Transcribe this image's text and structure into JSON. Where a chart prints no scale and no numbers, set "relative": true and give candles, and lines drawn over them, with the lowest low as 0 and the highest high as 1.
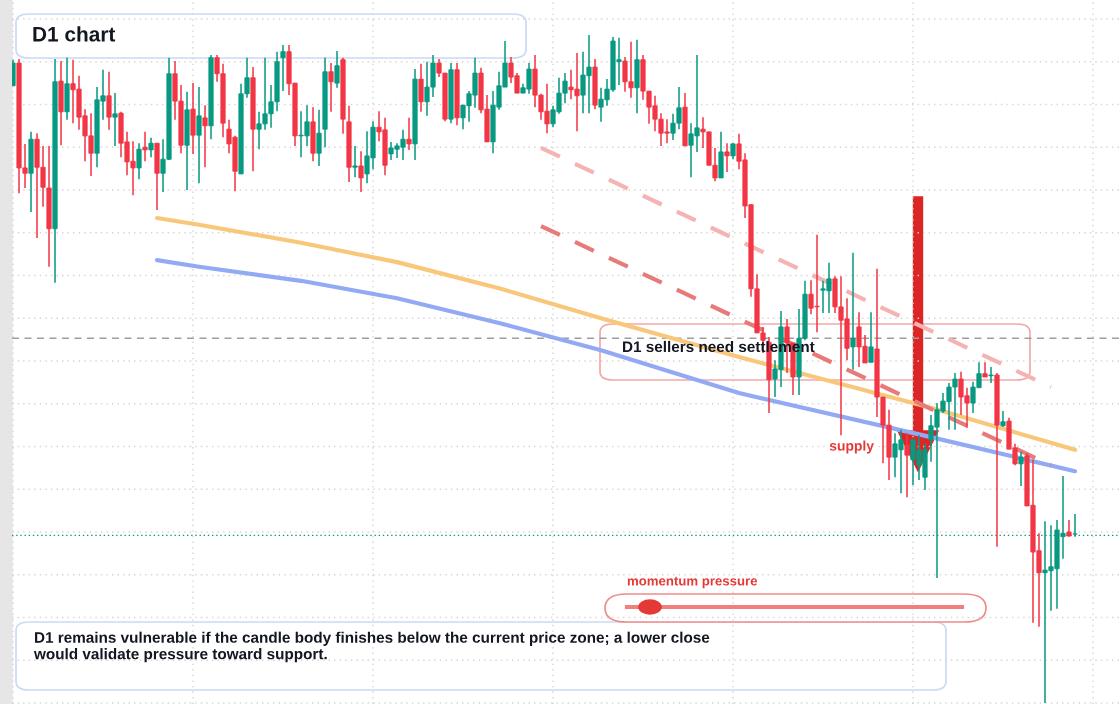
{
  "chart_data": {
    "type": "candlestick",
    "title": "D1 chart",
    "relative": true,
    "grid": true,
    "categories": [
      null,
      null,
      null,
      null,
      null,
      null,
      null,
      null,
      null,
      null,
      null,
      null,
      null,
      null,
      null,
      null,
      null,
      null,
      null,
      null,
      null,
      null,
      null,
      null,
      null,
      null,
      null,
      null,
      null,
      null,
      null,
      null,
      null,
      null,
      null,
      null,
      null,
      null,
      null,
      null,
      null,
      null,
      null,
      null,
      null,
      null,
      null,
      null,
      null,
      null,
      null,
      null,
      null,
      null,
      null,
      null,
      null,
      null,
      null,
      null,
      null,
      null,
      null,
      null,
      null,
      null,
      null,
      null,
      null,
      null,
      null,
      null,
      null,
      null,
      null,
      null,
      null,
      null,
      null,
      null,
      null,
      null,
      null,
      null,
      null,
      null,
      null,
      null,
      null,
      null,
      null,
      null,
      null,
      null,
      null,
      null,
      null,
      null,
      null,
      null,
      null,
      null,
      null,
      null,
      null,
      null,
      null,
      null,
      null,
      null,
      null,
      null,
      null,
      null,
      null,
      null,
      null,
      null,
      null,
      null,
      null,
      null,
      null,
      null,
      null,
      null,
      null,
      null,
      null,
      null,
      null,
      null,
      null,
      null,
      null,
      null,
      null,
      null,
      null,
      null,
      null,
      null,
      null,
      null,
      null,
      null,
      null,
      null,
      null,
      null,
      null,
      null,
      null,
      null,
      null,
      null,
      null,
      null,
      null,
      null,
      null,
      null,
      null,
      null,
      null,
      null,
      null,
      null,
      null,
      null,
      null,
      null,
      null,
      null,
      null,
      null,
      null,
      null
    ],
    "ohlc": [
      [
        0.924,
        0.963,
        0.924,
        0.958
      ],
      [
        0.958,
        0.964,
        0.763,
        0.801
      ],
      [
        0.801,
        0.837,
        0.771,
        0.793
      ],
      [
        0.793,
        0.855,
        0.735,
        0.844
      ],
      [
        0.844,
        0.853,
        0.696,
        0.802
      ],
      [
        0.802,
        0.834,
        0.743,
        0.772
      ],
      [
        0.771,
        0.834,
        0.653,
        0.71
      ],
      [
        0.71,
        0.964,
        0.629,
        0.93
      ],
      [
        0.931,
        0.961,
        0.835,
        0.885
      ],
      [
        0.885,
        0.966,
        0.873,
        0.927
      ],
      [
        0.927,
        0.963,
        0.868,
        0.918
      ],
      [
        0.919,
        0.939,
        0.858,
        0.877
      ],
      [
        0.879,
        0.889,
        0.811,
        0.849
      ],
      [
        0.849,
        0.883,
        0.789,
        0.823
      ],
      [
        0.823,
        0.922,
        0.802,
        0.903
      ],
      [
        0.901,
        0.948,
        0.873,
        0.909
      ],
      [
        0.909,
        0.945,
        0.858,
        0.877
      ],
      [
        0.877,
        0.913,
        0.834,
        0.882
      ],
      [
        0.883,
        0.885,
        0.817,
        0.838
      ],
      [
        0.84,
        0.855,
        0.79,
        0.81
      ],
      [
        0.811,
        0.841,
        0.76,
        0.801
      ],
      [
        0.801,
        0.838,
        0.784,
        0.829
      ],
      [
        0.832,
        0.855,
        0.811,
        0.828
      ],
      [
        0.828,
        0.846,
        0.817,
        0.838
      ],
      [
        0.838,
        0.838,
        0.738,
        0.793
      ],
      [
        0.793,
        0.844,
        0.765,
        0.814
      ],
      [
        0.814,
        0.966,
        0.813,
        0.942
      ],
      [
        0.942,
        0.961,
        0.873,
        0.901
      ],
      [
        0.901,
        0.925,
        0.823,
        0.835
      ],
      [
        0.835,
        0.915,
        0.768,
        0.888
      ],
      [
        0.889,
        0.928,
        0.822,
        0.85
      ],
      [
        0.85,
        0.922,
        0.778,
        0.879
      ],
      [
        0.876,
        0.895,
        0.802,
        0.864
      ],
      [
        0.864,
        0.97,
        0.844,
        0.966
      ],
      [
        0.966,
        0.97,
        0.93,
        0.942
      ],
      [
        0.942,
        0.957,
        0.847,
        0.868
      ],
      [
        0.859,
        0.873,
        0.823,
        0.837
      ],
      [
        0.847,
        0.849,
        0.766,
        0.796
      ],
      [
        0.792,
        0.927,
        0.792,
        0.912
      ],
      [
        0.912,
        0.966,
        0.906,
        0.936
      ],
      [
        0.936,
        0.952,
        0.796,
        0.859
      ],
      [
        0.859,
        0.885,
        0.829,
        0.867
      ],
      [
        0.867,
        0.966,
        0.858,
        0.882
      ],
      [
        0.882,
        0.925,
        0.861,
        0.9
      ],
      [
        0.9,
        0.975,
        0.886,
        0.96
      ],
      [
        0.966,
        0.985,
        0.916,
        0.975
      ],
      [
        0.975,
        0.985,
        0.91,
        0.927
      ],
      [
        0.928,
        0.928,
        0.834,
        0.849
      ],
      [
        0.849,
        0.886,
        0.817,
        0.85
      ],
      [
        0.849,
        0.895,
        0.834,
        0.87
      ],
      [
        0.87,
        0.892,
        0.811,
        0.823
      ],
      [
        0.823,
        0.888,
        0.804,
        0.853
      ],
      [
        0.859,
        0.966,
        0.832,
        0.945
      ],
      [
        0.945,
        0.958,
        0.885,
        0.93
      ],
      [
        0.928,
        0.976,
        0.921,
        0.954
      ],
      [
        0.963,
        0.966,
        0.852,
        0.874
      ],
      [
        0.87,
        0.894,
        0.78,
        0.802
      ],
      [
        0.802,
        0.834,
        0.787,
        0.804
      ],
      [
        0.804,
        0.826,
        0.765,
        0.786
      ],
      [
        0.792,
        0.856,
        0.778,
        0.819
      ],
      [
        0.816,
        0.871,
        0.799,
        0.862
      ],
      [
        0.862,
        0.886,
        0.841,
        0.855
      ],
      [
        0.858,
        0.876,
        0.79,
        0.805
      ],
      [
        0.822,
        0.84,
        0.813,
        0.831
      ],
      [
        0.829,
        0.838,
        0.816,
        0.834
      ],
      [
        0.832,
        0.858,
        0.813,
        0.844
      ],
      [
        0.844,
        0.876,
        0.828,
        0.837
      ],
      [
        0.837,
        0.949,
        0.813,
        0.934
      ],
      [
        0.934,
        0.957,
        0.885,
        0.9
      ],
      [
        0.9,
        0.96,
        0.879,
        0.922
      ],
      [
        0.922,
        0.97,
        0.907,
        0.958
      ],
      [
        0.958,
        0.964,
        0.937,
        0.943
      ],
      [
        0.943,
        0.943,
        0.871,
        0.874
      ],
      [
        0.874,
        0.958,
        0.868,
        0.948
      ],
      [
        0.948,
        0.958,
        0.865,
        0.876
      ],
      [
        0.876,
        0.895,
        0.859,
        0.895
      ],
      [
        0.894,
        0.916,
        0.87,
        0.912
      ],
      [
        0.91,
        0.966,
        0.891,
        0.943
      ],
      [
        0.943,
        0.951,
        0.883,
        0.888
      ],
      [
        0.889,
        0.91,
        0.84,
        0.84
      ],
      [
        0.84,
        0.916,
        0.823,
        0.895
      ],
      [
        0.892,
        0.945,
        0.888,
        0.924
      ],
      [
        0.922,
        0.991,
        0.922,
        0.958
      ],
      [
        0.958,
        0.967,
        0.928,
        0.937
      ],
      [
        0.939,
        0.943,
        0.913,
        0.913
      ],
      [
        0.913,
        0.927,
        0.913,
        0.921
      ],
      [
        0.919,
        0.958,
        0.912,
        0.949
      ],
      [
        0.949,
        0.97,
        0.892,
        0.91
      ],
      [
        0.91,
        0.912,
        0.873,
        0.885
      ],
      [
        0.886,
        0.927,
        0.853,
        0.867
      ],
      [
        0.867,
        0.894,
        0.862,
        0.888
      ],
      [
        0.885,
        0.936,
        0.882,
        0.913
      ],
      [
        0.913,
        0.943,
        0.898,
        0.931
      ],
      [
        0.922,
        0.948,
        0.904,
        0.918
      ],
      [
        0.919,
        0.973,
        0.856,
        0.909
      ],
      [
        0.91,
        0.975,
        0.883,
        0.94
      ],
      [
        0.939,
        1.0,
        0.883,
        0.952
      ],
      [
        0.952,
        0.964,
        0.889,
        0.895
      ],
      [
        0.892,
        0.921,
        0.87,
        0.904
      ],
      [
        0.903,
        0.934,
        0.894,
        0.919
      ],
      [
        0.918,
        0.997,
        0.915,
        0.991
      ],
      [
        0.96,
        0.996,
        0.925,
        0.963
      ],
      [
        0.961,
        0.967,
        0.915,
        0.93
      ],
      [
        0.93,
        0.99,
        0.906,
        0.921
      ],
      [
        0.921,
        0.993,
        0.883,
        0.963
      ],
      [
        0.963,
        0.97,
        0.903,
        0.916
      ],
      [
        0.916,
        0.916,
        0.867,
        0.892
      ],
      [
        0.894,
        0.909,
        0.856,
        0.874
      ],
      [
        0.874,
        0.883,
        0.834,
        0.853
      ],
      [
        0.855,
        0.874,
        0.838,
        0.853
      ],
      [
        0.853,
        0.882,
        0.843,
        0.868
      ],
      [
        0.868,
        0.922,
        0.859,
        0.891
      ],
      [
        0.892,
        0.913,
        0.834,
        0.834
      ],
      [
        0.835,
        0.868,
        0.787,
        0.852
      ],
      [
        0.849,
        0.97,
        0.825,
        0.861
      ],
      [
        0.859,
        0.877,
        0.831,
        0.855
      ],
      [
        0.855,
        0.855,
        0.805,
        0.805
      ],
      [
        0.805,
        0.831,
        0.781,
        0.786
      ],
      [
        0.786,
        0.855,
        0.786,
        0.825
      ],
      [
        0.825,
        0.838,
        0.795,
        0.819
      ],
      [
        0.819,
        0.838,
        0.814,
        0.837
      ],
      [
        0.837,
        0.852,
        0.799,
        0.811
      ],
      [
        0.813,
        0.823,
        0.726,
        0.744
      ],
      [
        0.746,
        0.747,
        0.608,
        0.62
      ],
      [
        0.62,
        0.642,
        0.554,
        0.554
      ],
      [
        0.554,
        0.563,
        0.524,
        0.543
      ],
      [
        0.54,
        0.548,
        0.434,
        0.484
      ],
      [
        0.485,
        0.513,
        0.458,
        0.5
      ],
      [
        0.499,
        0.587,
        0.473,
        0.563
      ],
      [
        0.563,
        0.575,
        0.494,
        0.539
      ],
      [
        0.539,
        0.539,
        0.461,
        0.488
      ],
      [
        0.488,
        0.59,
        0.461,
        0.546
      ],
      [
        0.546,
        0.632,
        0.543,
        0.612
      ],
      [
        0.612,
        0.633,
        0.582,
        0.591
      ],
      [
        0.594,
        0.701,
        0.555,
        0.593
      ],
      [
        0.618,
        0.632,
        0.584,
        0.62
      ],
      [
        0.617,
        0.659,
        0.584,
        0.635
      ],
      [
        0.635,
        0.639,
        0.584,
        0.593
      ],
      [
        0.593,
        0.639,
        0.401,
        0.573
      ],
      [
        0.575,
        0.606,
        0.513,
        0.531
      ],
      [
        0.533,
        0.674,
        0.499,
        0.546
      ],
      [
        0.563,
        0.585,
        0.503,
        0.533
      ],
      [
        0.534,
        0.551,
        0.509,
        0.509
      ],
      [
        0.51,
        0.585,
        0.51,
        0.533
      ],
      [
        0.53,
        0.65,
        0.428,
        0.458
      ],
      [
        0.458,
        0.458,
        0.359,
        0.416
      ],
      [
        0.416,
        0.439,
        0.334,
        0.368
      ],
      [
        0.368,
        0.404,
        0.338,
        0.388
      ],
      [
        0.379,
        0.409,
        0.314,
        0.394
      ],
      [
        0.386,
        0.404,
        0.308,
        0.371
      ],
      [
        0.364,
        0.394,
        0.326,
        0.394
      ],
      [
        0.356,
        0.401,
        0.334,
        0.379
      ],
      [
        0.338,
        0.389,
        0.319,
        0.379
      ],
      [
        0.394,
        0.431,
        0.361,
        0.415
      ],
      [
        0.413,
        0.449,
        0.187,
        0.439
      ],
      [
        0.437,
        0.464,
        0.434,
        0.452
      ],
      [
        0.451,
        0.479,
        0.409,
        0.473
      ],
      [
        0.473,
        0.494,
        0.409,
        0.485
      ],
      [
        0.485,
        0.496,
        0.431,
        0.458
      ],
      [
        0.46,
        0.472,
        0.412,
        0.449
      ],
      [
        0.449,
        0.481,
        0.434,
        0.473
      ],
      [
        0.472,
        0.51,
        0.472,
        0.493
      ],
      [
        0.493,
        0.51,
        0.488,
        0.488
      ],
      [
        0.49,
        0.503,
        0.479,
        0.491
      ],
      [
        0.491,
        0.494,
        0.234,
        0.416
      ],
      [
        0.415,
        0.437,
        0.413,
        0.421
      ],
      [
        0.422,
        0.427,
        0.38,
        0.38
      ],
      [
        0.382,
        0.388,
        0.356,
        0.358
      ],
      [
        0.358,
        0.376,
        0.325,
        0.368
      ],
      [
        0.37,
        0.374,
        0.295,
        0.295
      ],
      [
        0.296,
        0.364,
        0.12,
        0.226
      ],
      [
        0.228,
        0.254,
        0.114,
        0.195
      ],
      [
        0.195,
        0.272,
        0.0,
        0.199
      ],
      [
        0.198,
        0.266,
        0.138,
        0.204
      ],
      [
        0.201,
        0.274,
        0.141,
        0.259
      ],
      [
        0.249,
        0.34,
        0.216,
        0.254
      ],
      [
        0.256,
        0.274,
        0.249,
        0.25
      ],
      [
        0.253,
        0.283,
        0.249,
        0.253
      ]
    ],
    "colors": [
      "#089981",
      "#f23645",
      "#f23645",
      "#089981",
      "#f23645",
      "#f23645",
      "#f23645",
      "#089981",
      "#f23645",
      "#089981",
      "#f23645",
      "#f23645",
      "#f23645",
      "#f23645",
      "#089981",
      "#089981",
      "#f23645",
      "#089981",
      "#f23645",
      "#f23645",
      "#f23645",
      "#089981",
      "#f23645",
      "#089981",
      "#f23645",
      "#089981",
      "#089981",
      "#f23645",
      "#f23645",
      "#089981",
      "#f23645",
      "#089981",
      "#f23645",
      "#089981",
      "#f23645",
      "#f23645",
      "#f23645",
      "#f23645",
      "#089981",
      "#089981",
      "#f23645",
      "#089981",
      "#089981",
      "#089981",
      "#089981",
      "#089981",
      "#f23645",
      "#f23645",
      "#089981",
      "#089981",
      "#f23645",
      "#089981",
      "#089981",
      "#f23645",
      "#089981",
      "#f23645",
      "#f23645",
      "#089981",
      "#f23645",
      "#089981",
      "#089981",
      "#f23645",
      "#f23645",
      "#089981",
      "#089981",
      "#089981",
      "#f23645",
      "#089981",
      "#f23645",
      "#089981",
      "#089981",
      "#f23645",
      "#f23645",
      "#089981",
      "#f23645",
      "#089981",
      "#089981",
      "#089981",
      "#f23645",
      "#f23645",
      "#089981",
      "#089981",
      "#089981",
      "#f23645",
      "#f23645",
      "#089981",
      "#089981",
      "#f23645",
      "#f23645",
      "#f23645",
      "#089981",
      "#089981",
      "#089981",
      "#f23645",
      "#f23645",
      "#089981",
      "#089981",
      "#f23645",
      "#089981",
      "#089981",
      "#089981",
      "#089981",
      "#f23645",
      "#f23645",
      "#089981",
      "#f23645",
      "#f23645",
      "#f23645",
      "#f23645",
      "#f23645",
      "#089981",
      "#089981",
      "#f23645",
      "#089981",
      "#089981",
      "#f23645",
      "#f23645",
      "#f23645",
      "#089981",
      "#f23645",
      "#089981",
      "#f23645",
      "#f23645",
      "#f23645",
      "#f23645",
      "#f23645",
      "#f23645",
      "#089981",
      "#089981",
      "#f23645",
      "#f23645",
      "#089981",
      "#089981",
      "#f23645",
      "#f23645",
      "#089981",
      "#089981",
      "#f23645",
      "#f23645",
      "#f23645",
      "#089981",
      "#f23645",
      "#f23645",
      "#089981",
      "#f23645",
      "#f23645",
      "#f23645",
      "#089981",
      "#089981",
      "#f23645",
      "#089981",
      "#089981",
      "#089981",
      "#089981",
      "#089981",
      "#089981",
      "#089981",
      "#089981",
      "#f23645",
      "#f23645",
      "#089981",
      "#089981",
      "#f23645",
      "#089981",
      "#f23645",
      "#089981",
      "#f23645",
      "#f23645",
      "#089981",
      "#f23645",
      "#f23645",
      "#f23645",
      "#089981",
      "#089981",
      "#089981",
      "#089981",
      "#f23645",
      "#089981"
    ],
    "series": [
      {
        "type": "line",
        "color": "#f9c77a",
        "values": [
          null,
          null,
          null,
          null,
          null,
          null,
          null,
          null,
          null,
          null,
          null,
          null,
          null,
          null,
          null,
          null,
          null,
          null,
          null,
          null,
          null,
          null,
          null,
          null,
          0.726,
          null,
          null,
          null,
          null,
          null,
          null,
          0.716,
          null,
          null,
          null,
          null,
          null,
          null,
          null,
          null,
          null,
          null,
          null,
          null,
          null,
          null,
          null,
          null,
          0.689,
          null,
          null,
          null,
          null,
          null,
          null,
          null,
          null,
          null,
          null,
          null,
          null,
          null,
          null,
          null,
          0.66,
          null,
          null,
          null,
          null,
          null,
          null,
          null,
          null,
          null,
          null,
          null,
          null,
          null,
          null,
          null,
          null,
          0.621,
          null,
          null,
          null,
          null,
          null,
          null,
          null,
          null,
          null,
          null,
          null,
          null,
          null,
          null,
          null,
          null,
          0.576,
          null,
          null,
          null,
          null,
          null,
          null,
          null,
          null,
          null,
          null,
          null,
          null,
          null,
          null,
          null,
          null,
          null,
          null,
          null,
          null,
          null,
          null,
          0.518,
          null,
          null,
          null,
          null,
          null,
          null,
          null,
          null,
          null,
          null,
          null,
          null,
          null,
          null,
          null,
          null,
          null,
          null,
          null,
          null,
          null,
          null,
          null,
          null,
          null,
          null,
          null,
          null,
          null,
          null,
          null,
          0.442,
          null,
          null,
          null,
          null,
          null,
          null,
          null,
          null,
          null,
          null,
          null,
          null,
          null,
          null,
          null,
          null,
          null,
          null,
          null,
          null,
          null,
          null,
          null,
          0.379
        ]
      },
      {
        "type": "line",
        "color": "#92aaf3",
        "values": [
          null,
          null,
          null,
          null,
          null,
          null,
          null,
          null,
          null,
          null,
          null,
          null,
          null,
          null,
          null,
          null,
          null,
          null,
          null,
          null,
          null,
          null,
          null,
          null,
          0.663,
          null,
          null,
          null,
          null,
          null,
          null,
          0.653,
          null,
          null,
          null,
          null,
          null,
          null,
          null,
          null,
          null,
          null,
          null,
          null,
          null,
          null,
          null,
          null,
          0.632,
          null,
          null,
          null,
          null,
          null,
          null,
          null,
          null,
          null,
          null,
          null,
          null,
          null,
          null,
          null,
          0.606,
          null,
          null,
          null,
          null,
          null,
          null,
          null,
          null,
          null,
          null,
          null,
          null,
          null,
          null,
          null,
          null,
          0.569,
          null,
          null,
          null,
          null,
          null,
          null,
          null,
          null,
          null,
          null,
          null,
          null,
          null,
          null,
          null,
          null,
          0.528,
          null,
          null,
          null,
          null,
          null,
          null,
          null,
          null,
          null,
          null,
          null,
          null,
          null,
          null,
          null,
          null,
          null,
          null,
          null,
          null,
          null,
          null,
          0.464,
          null,
          null,
          null,
          null,
          null,
          null,
          null,
          null,
          null,
          null,
          null,
          null,
          null,
          null,
          null,
          null,
          null,
          null,
          null,
          null,
          null,
          null,
          null,
          null,
          null,
          null,
          null,
          null,
          null,
          null,
          null,
          0.398,
          null,
          null,
          null,
          null,
          null,
          null,
          null,
          null,
          null,
          null,
          null,
          null,
          null,
          null,
          null,
          null,
          null,
          null,
          null,
          null,
          null,
          null,
          null,
          0.347
        ]
      },
      {
        "type": "line",
        "color": "#f5b3b3",
        "line_style": "dashed",
        "values": [
          null,
          null,
          null,
          null,
          null,
          null,
          null,
          null,
          null,
          null,
          null,
          null,
          null,
          null,
          null,
          null,
          null,
          null,
          null,
          null,
          null,
          null,
          null,
          null,
          null,
          null,
          null,
          null,
          null,
          null,
          null,
          null,
          null,
          null,
          null,
          null,
          null,
          null,
          null,
          null,
          null,
          null,
          null,
          null,
          null,
          null,
          null,
          null,
          null,
          null,
          null,
          null,
          null,
          null,
          null,
          null,
          null,
          null,
          null,
          null,
          null,
          null,
          null,
          null,
          null,
          null,
          null,
          null,
          null,
          null,
          null,
          null,
          null,
          null,
          null,
          null,
          null,
          null,
          null,
          null,
          null,
          null,
          null,
          null,
          null,
          null,
          null,
          null,
          0.831,
          null,
          null,
          null,
          null,
          null,
          null,
          null,
          null,
          null,
          null,
          null,
          null,
          null,
          null,
          null,
          null,
          null,
          null,
          null,
          null,
          null,
          null,
          null,
          null,
          null,
          null,
          null,
          null,
          null,
          null,
          null,
          null,
          null,
          null,
          null,
          null,
          null,
          null,
          null,
          null,
          null,
          null,
          null,
          null,
          null,
          null,
          null,
          null,
          null,
          null,
          null,
          null,
          null,
          null,
          null,
          null,
          null,
          null,
          null,
          null,
          null,
          null,
          null,
          null,
          null,
          null,
          null,
          null,
          null,
          null,
          null,
          null,
          null,
          null,
          null,
          null,
          null,
          null,
          null,
          null,
          null,
          null,
          null,
          null,
          0.473,
          null,
          null,
          null,
          null
        ]
      },
      {
        "type": "line",
        "color": "#e87a7a",
        "line_style": "dashed",
        "values": [
          null,
          null,
          null,
          null,
          null,
          null,
          null,
          null,
          null,
          null,
          null,
          null,
          null,
          null,
          null,
          null,
          null,
          null,
          null,
          null,
          null,
          null,
          null,
          null,
          null,
          null,
          null,
          null,
          null,
          null,
          null,
          null,
          null,
          null,
          null,
          null,
          null,
          null,
          null,
          null,
          null,
          null,
          null,
          null,
          null,
          null,
          null,
          null,
          null,
          null,
          null,
          null,
          null,
          null,
          null,
          null,
          null,
          null,
          null,
          null,
          null,
          null,
          null,
          null,
          null,
          null,
          null,
          null,
          null,
          null,
          null,
          null,
          null,
          null,
          null,
          null,
          null,
          null,
          null,
          null,
          null,
          null,
          null,
          null,
          null,
          null,
          null,
          null,
          0.714,
          null,
          null,
          null,
          null,
          null,
          null,
          null,
          null,
          null,
          null,
          null,
          null,
          null,
          null,
          null,
          null,
          null,
          null,
          null,
          null,
          null,
          null,
          null,
          null,
          null,
          null,
          null,
          null,
          null,
          null,
          null,
          null,
          null,
          null,
          null,
          null,
          null,
          null,
          null,
          null,
          null,
          null,
          null,
          null,
          null,
          null,
          null,
          null,
          null,
          null,
          null,
          null,
          null,
          null,
          null,
          null,
          null,
          null,
          null,
          null,
          null,
          null,
          null,
          null,
          null,
          null,
          null,
          null,
          null,
          null,
          null,
          null,
          null,
          null,
          null,
          null,
          null,
          null,
          null,
          null,
          null,
          null,
          null,
          null,
          0.356,
          null,
          null,
          null,
          null
        ]
      }
    ],
    "ref_lines": [
      {
        "axis": "y",
        "value": 0.546,
        "color": "#9e9e9e",
        "line_style": "dashed"
      },
      {
        "axis": "y",
        "value": 0.251,
        "color": "#089981",
        "line_style": "dotted"
      }
    ],
    "annotations": [
      "D1 sellers need settlement",
      "supply",
      "momentum pressure",
      "D1 remains vulnerable if the candle body finishes below the current price zone; a lower close would validate pressure toward support."
    ]
  }
}
